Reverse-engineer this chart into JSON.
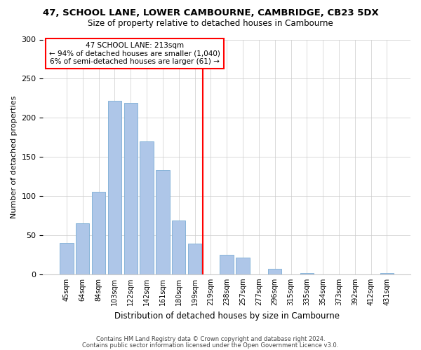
{
  "title": "47, SCHOOL LANE, LOWER CAMBOURNE, CAMBRIDGE, CB23 5DX",
  "subtitle": "Size of property relative to detached houses in Cambourne",
  "xlabel": "Distribution of detached houses by size in Cambourne",
  "ylabel": "Number of detached properties",
  "bin_labels": [
    "45sqm",
    "64sqm",
    "84sqm",
    "103sqm",
    "122sqm",
    "142sqm",
    "161sqm",
    "180sqm",
    "199sqm",
    "219sqm",
    "238sqm",
    "257sqm",
    "277sqm",
    "296sqm",
    "315sqm",
    "335sqm",
    "354sqm",
    "373sqm",
    "392sqm",
    "412sqm",
    "431sqm"
  ],
  "bar_values": [
    40,
    65,
    105,
    222,
    219,
    170,
    133,
    69,
    39,
    0,
    25,
    21,
    0,
    7,
    0,
    2,
    0,
    0,
    0,
    0,
    2
  ],
  "bar_color": "#aec6e8",
  "bar_edge_color": "#7aadd4",
  "highlight_line_color": "red",
  "highlight_line_index": 9,
  "annotation_title": "47 SCHOOL LANE: 213sqm",
  "annotation_line1": "← 94% of detached houses are smaller (1,040)",
  "annotation_line2": "6% of semi-detached houses are larger (61) →",
  "annotation_box_color": "#ffffff",
  "annotation_box_edge": "red",
  "ylim": [
    0,
    300
  ],
  "yticks": [
    0,
    50,
    100,
    150,
    200,
    250,
    300
  ],
  "footer1": "Contains HM Land Registry data © Crown copyright and database right 2024.",
  "footer2": "Contains public sector information licensed under the Open Government Licence v3.0."
}
